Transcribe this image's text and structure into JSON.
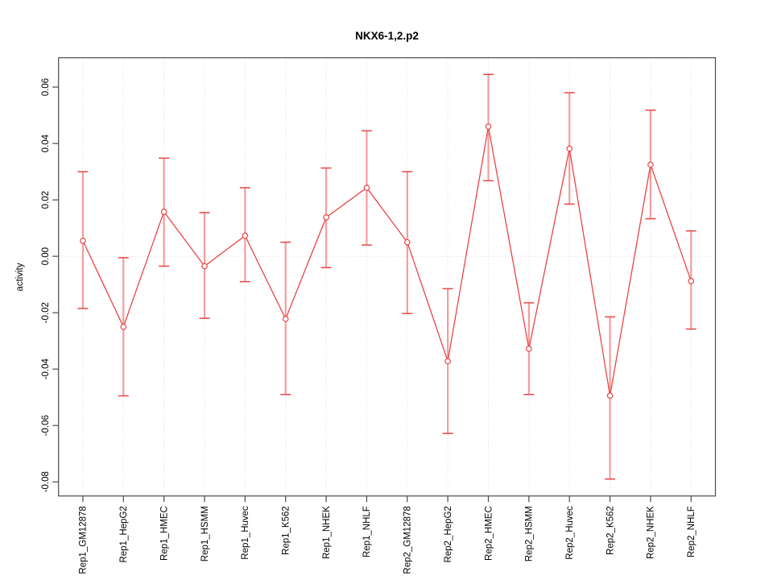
{
  "chart_data": {
    "type": "line",
    "title": "NKX6-1,2.p2",
    "ylabel": "activity",
    "xlabel": "",
    "legend_position": "none",
    "grid": {
      "vertical_gridlines": "dotted light gray at every category",
      "horizontal_zero_line": "dotted light gray at y=0"
    },
    "y_ticks": [
      0.06,
      0.04,
      0.02,
      0.0,
      -0.02,
      -0.04,
      -0.06,
      -0.08
    ],
    "ylim": [
      -0.085,
      0.0704
    ],
    "categories": [
      "Rep1_GM12878",
      "Rep1_HepG2",
      "Rep1_HMEC",
      "Rep1_HSMM",
      "Rep1_Huvec",
      "Rep1_K562",
      "Rep1_NHEK",
      "Rep1_NHLF",
      "Rep2_GM12878",
      "Rep2_HepG2",
      "Rep2_HMEC",
      "Rep2_HSMM",
      "Rep2_Huvec",
      "Rep2_K562",
      "Rep2_NHEK",
      "Rep2_NHLF"
    ],
    "series": [
      {
        "name": "activity",
        "marker": "open-circle",
        "values": [
          0.0055,
          -0.025,
          0.0158,
          -0.0035,
          0.0073,
          -0.0222,
          0.0138,
          0.0243,
          0.005,
          -0.0372,
          0.046,
          -0.0328,
          0.0382,
          -0.0494,
          0.0325,
          -0.0088
        ],
        "ci_upper": [
          0.03,
          -0.0005,
          0.0348,
          0.0155,
          0.0243,
          0.005,
          0.0313,
          0.0445,
          0.03,
          -0.0115,
          0.0645,
          -0.0165,
          0.058,
          -0.0215,
          0.0518,
          0.009
        ],
        "ci_lower": [
          -0.0185,
          -0.0495,
          -0.0035,
          -0.022,
          -0.009,
          -0.049,
          -0.004,
          0.004,
          -0.0203,
          -0.0628,
          0.0268,
          -0.049,
          0.0185,
          -0.079,
          0.0133,
          -0.0258
        ]
      }
    ],
    "colors": {
      "series": "#e84545",
      "error_bar": "#f59c9c",
      "grid": "#d9d9d9",
      "zero_line": "#d4d4d4",
      "axis": "#4a4a4a",
      "text": "#000000",
      "background": "#ffffff"
    }
  }
}
